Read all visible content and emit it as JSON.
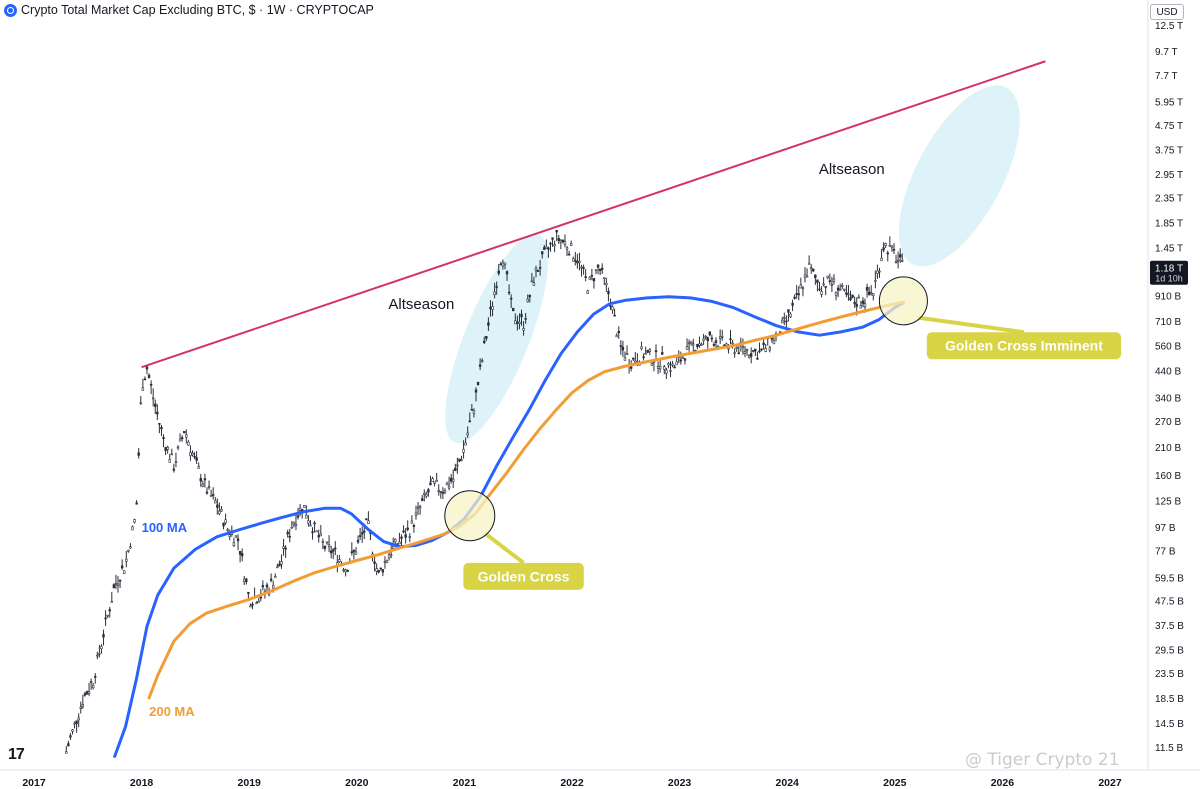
{
  "header": {
    "title": "Crypto Total Market Cap Excluding BTC, $ · 1W · CRYPTOCAP",
    "currency": "USD"
  },
  "colors": {
    "background": "#ffffff",
    "candle": "#2a2e39",
    "ma100": "#2962ff",
    "ma200": "#f39c33",
    "resistance": "#d4326b",
    "ellipse_fill": "#d7f0f8",
    "highlight_circle": "#f7f3c6",
    "callout": "#d8d445"
  },
  "watermark": "@ Tiger Crypto 21",
  "chart_data": {
    "type": "line",
    "scale": "log",
    "ylim": [
      10500000000.0,
      13500000000000.0
    ],
    "x": [
      "2017",
      "2018",
      "2019",
      "2020",
      "2021",
      "2022",
      "2023",
      "2024",
      "2025",
      "2026",
      "2027"
    ],
    "xlim": [
      2017.0,
      2028.0
    ],
    "y_ticks": [
      {
        "label": "12.5 T",
        "v": 12500000000000.0
      },
      {
        "label": "9.7 T",
        "v": 9700000000000.0
      },
      {
        "label": "7.7 T",
        "v": 7700000000000.0
      },
      {
        "label": "5.95 T",
        "v": 5950000000000.0
      },
      {
        "label": "4.75 T",
        "v": 4750000000000.0
      },
      {
        "label": "3.75 T",
        "v": 3750000000000.0
      },
      {
        "label": "2.95 T",
        "v": 2950000000000.0
      },
      {
        "label": "2.35 T",
        "v": 2350000000000.0
      },
      {
        "label": "1.85 T",
        "v": 1850000000000.0
      },
      {
        "label": "1.45 T",
        "v": 1450000000000.0
      },
      {
        "label": "910 B",
        "v": 910000000000.0
      },
      {
        "label": "710 B",
        "v": 710000000000.0
      },
      {
        "label": "560 B",
        "v": 560000000000.0
      },
      {
        "label": "440 B",
        "v": 440000000000.0
      },
      {
        "label": "340 B",
        "v": 340000000000.0
      },
      {
        "label": "270 B",
        "v": 270000000000.0
      },
      {
        "label": "210 B",
        "v": 210000000000.0
      },
      {
        "label": "160 B",
        "v": 160000000000.0
      },
      {
        "label": "125 B",
        "v": 125000000000.0
      },
      {
        "label": "97 B",
        "v": 97000000000.0
      },
      {
        "label": "77 B",
        "v": 77000000000.0
      },
      {
        "label": "59.5 B",
        "v": 59500000000.0
      },
      {
        "label": "47.5 B",
        "v": 47500000000.0
      },
      {
        "label": "37.5 B",
        "v": 37500000000.0
      },
      {
        "label": "29.5 B",
        "v": 29500000000.0
      },
      {
        "label": "23.5 B",
        "v": 23500000000.0
      },
      {
        "label": "18.5 B",
        "v": 18500000000.0
      },
      {
        "label": "14.5 B",
        "v": 14500000000.0
      },
      {
        "label": "11.5 B",
        "v": 11500000000.0
      }
    ],
    "current_price": {
      "label": "1.18 T",
      "countdown": "1d 10h",
      "v": 1180000000000.0
    },
    "price_series": [
      [
        2017.3,
        11000000000.0
      ],
      [
        2017.45,
        18000000000.0
      ],
      [
        2017.55,
        22000000000.0
      ],
      [
        2017.65,
        35000000000.0
      ],
      [
        2017.75,
        55000000000.0
      ],
      [
        2017.85,
        68000000000.0
      ],
      [
        2017.95,
        110000000000.0
      ],
      [
        2018.0,
        380000000000.0
      ],
      [
        2018.05,
        450000000000.0
      ],
      [
        2018.12,
        320000000000.0
      ],
      [
        2018.2,
        230000000000.0
      ],
      [
        2018.3,
        175000000000.0
      ],
      [
        2018.4,
        250000000000.0
      ],
      [
        2018.5,
        180000000000.0
      ],
      [
        2018.6,
        140000000000.0
      ],
      [
        2018.7,
        120000000000.0
      ],
      [
        2018.8,
        95000000000.0
      ],
      [
        2018.9,
        85000000000.0
      ],
      [
        2019.0,
        48000000000.0
      ],
      [
        2019.1,
        50000000000.0
      ],
      [
        2019.2,
        55000000000.0
      ],
      [
        2019.3,
        70000000000.0
      ],
      [
        2019.4,
        100000000000.0
      ],
      [
        2019.5,
        120000000000.0
      ],
      [
        2019.6,
        95000000000.0
      ],
      [
        2019.7,
        80000000000.0
      ],
      [
        2019.8,
        75000000000.0
      ],
      [
        2019.9,
        65000000000.0
      ],
      [
        2020.0,
        80000000000.0
      ],
      [
        2020.1,
        100000000000.0
      ],
      [
        2020.2,
        60000000000.0
      ],
      [
        2020.3,
        75000000000.0
      ],
      [
        2020.4,
        85000000000.0
      ],
      [
        2020.5,
        95000000000.0
      ],
      [
        2020.6,
        120000000000.0
      ],
      [
        2020.7,
        145000000000.0
      ],
      [
        2020.8,
        140000000000.0
      ],
      [
        2020.9,
        155000000000.0
      ],
      [
        2021.0,
        210000000000.0
      ],
      [
        2021.1,
        330000000000.0
      ],
      [
        2021.2,
        600000000000.0
      ],
      [
        2021.35,
        1400000000000.0
      ],
      [
        2021.45,
        750000000000.0
      ],
      [
        2021.55,
        700000000000.0
      ],
      [
        2021.65,
        1100000000000.0
      ],
      [
        2021.75,
        1350000000000.0
      ],
      [
        2021.85,
        1600000000000.0
      ],
      [
        2021.95,
        1500000000000.0
      ],
      [
        2022.05,
        1300000000000.0
      ],
      [
        2022.15,
        1000000000000.0
      ],
      [
        2022.25,
        1200000000000.0
      ],
      [
        2022.35,
        900000000000.0
      ],
      [
        2022.45,
        550000000000.0
      ],
      [
        2022.55,
        480000000000.0
      ],
      [
        2022.65,
        520000000000.0
      ],
      [
        2022.75,
        500000000000.0
      ],
      [
        2022.85,
        480000000000.0
      ],
      [
        2022.95,
        450000000000.0
      ],
      [
        2023.05,
        520000000000.0
      ],
      [
        2023.15,
        570000000000.0
      ],
      [
        2023.3,
        600000000000.0
      ],
      [
        2023.45,
        560000000000.0
      ],
      [
        2023.6,
        540000000000.0
      ],
      [
        2023.75,
        520000000000.0
      ],
      [
        2023.9,
        620000000000.0
      ],
      [
        2024.0,
        720000000000.0
      ],
      [
        2024.1,
        900000000000.0
      ],
      [
        2024.2,
        1200000000000.0
      ],
      [
        2024.3,
        1000000000000.0
      ],
      [
        2024.4,
        1050000000000.0
      ],
      [
        2024.5,
        950000000000.0
      ],
      [
        2024.6,
        850000000000.0
      ],
      [
        2024.7,
        870000000000.0
      ],
      [
        2024.8,
        950000000000.0
      ],
      [
        2024.9,
        1500000000000.0
      ],
      [
        2025.0,
        1350000000000.0
      ],
      [
        2025.08,
        1180000000000.0
      ]
    ],
    "series": [
      {
        "name": "100 MA",
        "color": "#2962ff",
        "points": [
          [
            2017.75,
            10500000000.0
          ],
          [
            2017.85,
            14000000000.0
          ],
          [
            2017.95,
            22000000000.0
          ],
          [
            2018.05,
            37000000000.0
          ],
          [
            2018.15,
            50000000000.0
          ],
          [
            2018.3,
            65000000000.0
          ],
          [
            2018.5,
            78000000000.0
          ],
          [
            2018.7,
            88000000000.0
          ],
          [
            2018.9,
            94000000000.0
          ],
          [
            2019.1,
            100000000000.0
          ],
          [
            2019.3,
            106000000000.0
          ],
          [
            2019.5,
            112000000000.0
          ],
          [
            2019.7,
            116000000000.0
          ],
          [
            2019.85,
            116000000000.0
          ],
          [
            2019.95,
            110000000000.0
          ],
          [
            2020.1,
            95000000000.0
          ],
          [
            2020.25,
            84000000000.0
          ],
          [
            2020.4,
            80000000000.0
          ],
          [
            2020.55,
            81000000000.0
          ],
          [
            2020.7,
            85000000000.0
          ],
          [
            2020.85,
            92000000000.0
          ],
          [
            2021.0,
            105000000000.0
          ],
          [
            2021.15,
            130000000000.0
          ],
          [
            2021.3,
            175000000000.0
          ],
          [
            2021.45,
            230000000000.0
          ],
          [
            2021.6,
            300000000000.0
          ],
          [
            2021.75,
            400000000000.0
          ],
          [
            2021.9,
            520000000000.0
          ],
          [
            2022.05,
            640000000000.0
          ],
          [
            2022.2,
            760000000000.0
          ],
          [
            2022.35,
            840000000000.0
          ],
          [
            2022.5,
            870000000000.0
          ],
          [
            2022.7,
            890000000000.0
          ],
          [
            2022.9,
            900000000000.0
          ],
          [
            2023.1,
            890000000000.0
          ],
          [
            2023.3,
            860000000000.0
          ],
          [
            2023.5,
            810000000000.0
          ],
          [
            2023.7,
            740000000000.0
          ],
          [
            2023.9,
            680000000000.0
          ],
          [
            2024.1,
            640000000000.0
          ],
          [
            2024.3,
            620000000000.0
          ],
          [
            2024.5,
            640000000000.0
          ],
          [
            2024.7,
            670000000000.0
          ],
          [
            2024.85,
            720000000000.0
          ],
          [
            2025.0,
            810000000000.0
          ],
          [
            2025.08,
            850000000000.0
          ]
        ]
      },
      {
        "name": "200 MA",
        "color": "#f39c33",
        "points": [
          [
            2018.07,
            18500000000.0
          ],
          [
            2018.15,
            23000000000.0
          ],
          [
            2018.3,
            32000000000.0
          ],
          [
            2018.45,
            38000000000.0
          ],
          [
            2018.6,
            42000000000.0
          ],
          [
            2018.8,
            45000000000.0
          ],
          [
            2019.0,
            48000000000.0
          ],
          [
            2019.2,
            52000000000.0
          ],
          [
            2019.4,
            57000000000.0
          ],
          [
            2019.6,
            62000000000.0
          ],
          [
            2019.8,
            66000000000.0
          ],
          [
            2020.0,
            70000000000.0
          ],
          [
            2020.2,
            74000000000.0
          ],
          [
            2020.4,
            79000000000.0
          ],
          [
            2020.6,
            84000000000.0
          ],
          [
            2020.8,
            90000000000.0
          ],
          [
            2020.95,
            97000000000.0
          ],
          [
            2021.1,
            110000000000.0
          ],
          [
            2021.25,
            135000000000.0
          ],
          [
            2021.4,
            165000000000.0
          ],
          [
            2021.55,
            205000000000.0
          ],
          [
            2021.7,
            250000000000.0
          ],
          [
            2021.85,
            300000000000.0
          ],
          [
            2022.0,
            355000000000.0
          ],
          [
            2022.15,
            400000000000.0
          ],
          [
            2022.3,
            435000000000.0
          ],
          [
            2022.5,
            460000000000.0
          ],
          [
            2022.7,
            480000000000.0
          ],
          [
            2022.9,
            500000000000.0
          ],
          [
            2023.1,
            520000000000.0
          ],
          [
            2023.3,
            540000000000.0
          ],
          [
            2023.5,
            560000000000.0
          ],
          [
            2023.7,
            590000000000.0
          ],
          [
            2023.9,
            620000000000.0
          ],
          [
            2024.1,
            660000000000.0
          ],
          [
            2024.3,
            700000000000.0
          ],
          [
            2024.5,
            740000000000.0
          ],
          [
            2024.7,
            780000000000.0
          ],
          [
            2024.9,
            820000000000.0
          ],
          [
            2025.08,
            855000000000.0
          ]
        ]
      }
    ],
    "trendline": {
      "from": [
        2018.0,
        455000000000.0
      ],
      "to": [
        2026.4,
        8800000000000.0
      ]
    },
    "annotations": [
      {
        "text": "Altseason",
        "x": 2020.6,
        "y": 800000000000.0,
        "type": "text"
      },
      {
        "text": "Altseason",
        "x": 2024.6,
        "y": 2950000000000.0,
        "type": "text"
      },
      {
        "text": "100 MA",
        "x": 2018.0,
        "y": 92000000000.0,
        "type": "label",
        "color": "#2962ff"
      },
      {
        "text": "200 MA",
        "x": 2018.07,
        "y": 15500000000.0,
        "type": "label",
        "color": "#f39c33"
      },
      {
        "text": "Golden Cross",
        "x": 2021.05,
        "y": 108000000000.0,
        "type": "callout",
        "box_x": 2021.55,
        "box_y": 60000000000.0
      },
      {
        "text": "Golden Cross Imminent",
        "x": 2025.08,
        "y": 865000000000.0,
        "type": "callout",
        "box_x": 2026.2,
        "box_y": 560000000000.0
      }
    ],
    "ellipses": [
      {
        "center": [
          2021.3,
          600000000000.0
        ],
        "label": "Altseason zone 1"
      },
      {
        "center": [
          2025.6,
          2900000000000.0
        ],
        "label": "Altseason zone 2"
      }
    ],
    "grid": false,
    "legend": "none"
  }
}
